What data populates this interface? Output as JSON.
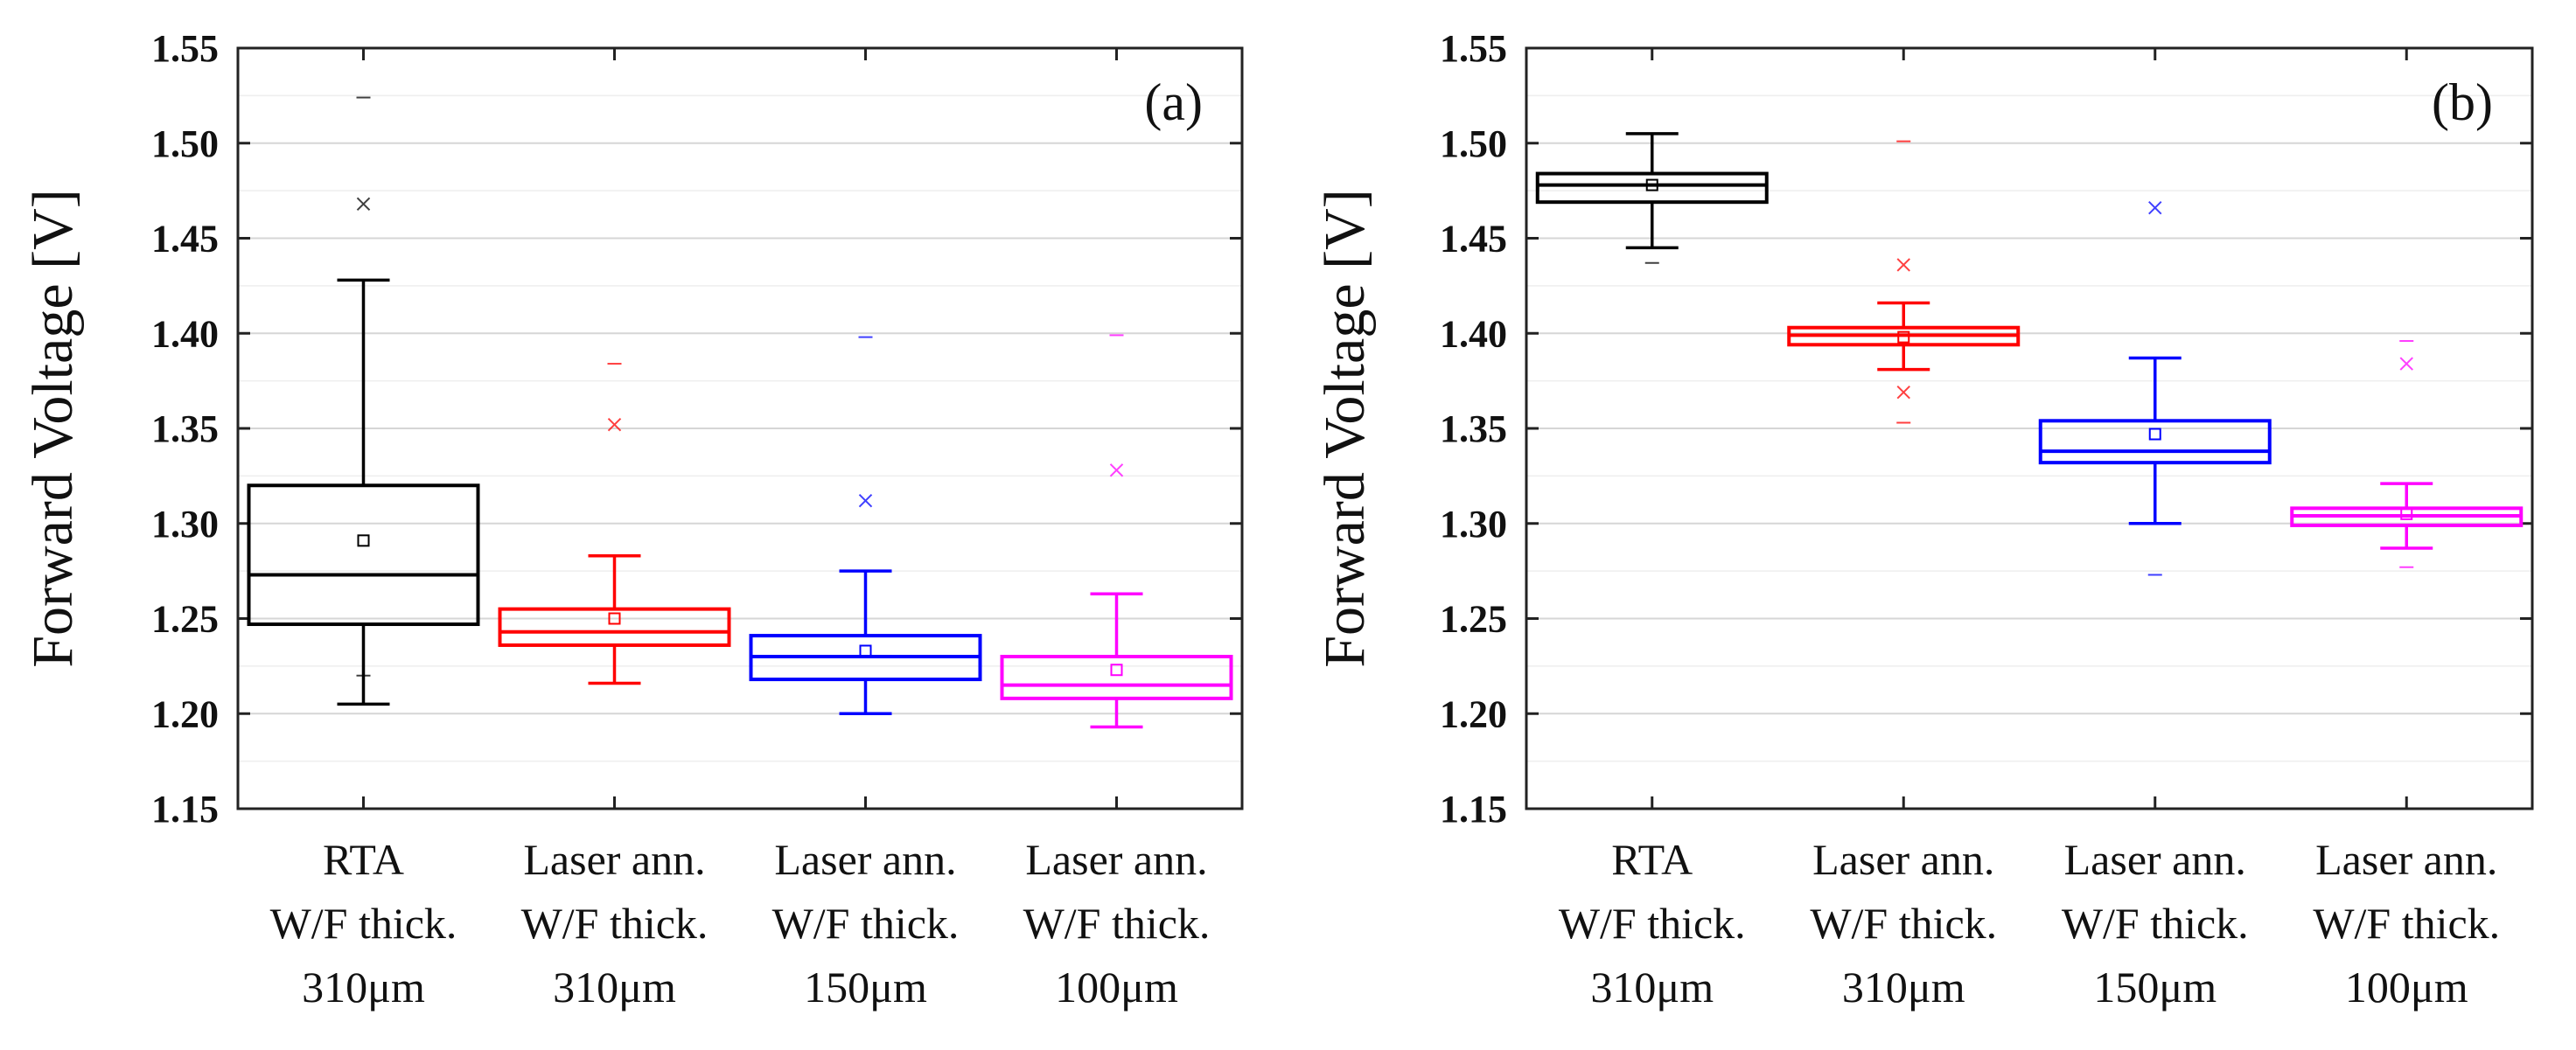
{
  "chart_data": [
    {
      "type": "box",
      "panel_label": "(a)",
      "ylabel": "Forward Voltage [V]",
      "ylim": [
        1.15,
        1.55
      ],
      "yticks": [
        "1.15",
        "1.20",
        "1.25",
        "1.30",
        "1.35",
        "1.40",
        "1.45",
        "1.50",
        "1.55"
      ],
      "grid": true,
      "categories": [
        [
          "RTA",
          "W/F thick.",
          "310μm"
        ],
        [
          "Laser ann.",
          "W/F thick.",
          "310μm"
        ],
        [
          "Laser ann.",
          "W/F thick.",
          "150μm"
        ],
        [
          "Laser ann.",
          "W/F thick.",
          "100μm"
        ]
      ],
      "series": [
        {
          "color": "#000000",
          "whisker_low": 1.205,
          "q1": 1.247,
          "median": 1.273,
          "q3": 1.32,
          "whisker_high": 1.428,
          "mean": 1.291,
          "x_marks": [
            1.468
          ],
          "dash_marks": [
            1.524,
            1.22
          ]
        },
        {
          "color": "#ff0000",
          "whisker_low": 1.216,
          "q1": 1.236,
          "median": 1.243,
          "q3": 1.255,
          "whisker_high": 1.283,
          "mean": 1.25,
          "x_marks": [
            1.352
          ],
          "dash_marks": [
            1.384
          ]
        },
        {
          "color": "#0000ff",
          "whisker_low": 1.2,
          "q1": 1.218,
          "median": 1.23,
          "q3": 1.241,
          "whisker_high": 1.275,
          "mean": 1.233,
          "x_marks": [
            1.312
          ],
          "dash_marks": [
            1.398
          ]
        },
        {
          "color": "#ff00ff",
          "whisker_low": 1.193,
          "q1": 1.208,
          "median": 1.215,
          "q3": 1.23,
          "whisker_high": 1.263,
          "mean": 1.223,
          "x_marks": [
            1.328
          ],
          "dash_marks": [
            1.399
          ]
        }
      ]
    },
    {
      "type": "box",
      "panel_label": "(b)",
      "ylabel": "Forward Voltage [V]",
      "ylim": [
        1.15,
        1.55
      ],
      "yticks": [
        "1.15",
        "1.20",
        "1.25",
        "1.30",
        "1.35",
        "1.40",
        "1.45",
        "1.50",
        "1.55"
      ],
      "grid": true,
      "categories": [
        [
          "RTA",
          "W/F thick.",
          "310μm"
        ],
        [
          "Laser ann.",
          "W/F thick.",
          "310μm"
        ],
        [
          "Laser ann.",
          "W/F thick.",
          "150μm"
        ],
        [
          "Laser ann.",
          "W/F thick.",
          "100μm"
        ]
      ],
      "series": [
        {
          "color": "#000000",
          "whisker_low": 1.445,
          "q1": 1.469,
          "median": 1.478,
          "q3": 1.484,
          "whisker_high": 1.505,
          "mean": 1.478,
          "x_marks": [],
          "dash_marks": [
            1.437
          ]
        },
        {
          "color": "#ff0000",
          "whisker_low": 1.381,
          "q1": 1.394,
          "median": 1.399,
          "q3": 1.403,
          "whisker_high": 1.416,
          "mean": 1.398,
          "x_marks": [
            1.436,
            1.369
          ],
          "dash_marks": [
            1.501,
            1.353
          ]
        },
        {
          "color": "#0000ff",
          "whisker_low": 1.3,
          "q1": 1.332,
          "median": 1.338,
          "q3": 1.354,
          "whisker_high": 1.387,
          "mean": 1.347,
          "x_marks": [
            1.466
          ],
          "dash_marks": [
            1.273
          ]
        },
        {
          "color": "#ff00ff",
          "whisker_low": 1.287,
          "q1": 1.299,
          "median": 1.304,
          "q3": 1.308,
          "whisker_high": 1.321,
          "mean": 1.305,
          "x_marks": [
            1.384
          ],
          "dash_marks": [
            1.396,
            1.277
          ]
        }
      ]
    }
  ]
}
